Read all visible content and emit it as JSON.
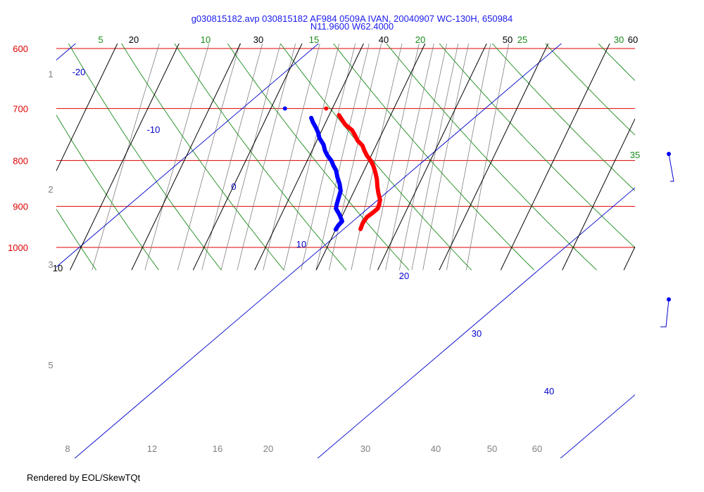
{
  "title_line1": "g030815182.avp 030815182 AF984 0509A IVAN, 20040907 WC-130H, 650984",
  "title_line2": "N11.9600 W62.4000",
  "footer": "Rendered by EOL/SkewTQt",
  "chart_data": {
    "type": "line",
    "title": "g030815182.avp 030815182 AF984 0509A IVAN, 20040907 WC-130H, 650984 N11.9600 W62.4000",
    "xlabel": "",
    "ylabel": "",
    "pressure_range": [
      600,
      1040
    ],
    "pressure_ticks": [
      "600",
      "700",
      "800",
      "900",
      "1000"
    ],
    "isotherms_bottom": [
      "20",
      "30",
      "40",
      "50",
      "60"
    ],
    "isotherms_top": [
      "20",
      "30",
      "40",
      "50",
      "60"
    ],
    "isotherms_left": [
      "10"
    ],
    "mixing_ratio_bottom": [
      "8",
      "12",
      "16",
      "20",
      "30",
      "40",
      "50",
      "60"
    ],
    "mixing_ratio_left": [
      "1",
      "2",
      "3",
      "5"
    ],
    "dry_adiabat_labels": [
      "5",
      "10",
      "15",
      "20",
      "25",
      "30",
      "35"
    ],
    "moist_adiabat_labels": [
      "-20",
      "-10",
      "0",
      "10",
      "20",
      "30",
      "40"
    ],
    "colors": {
      "isobar": "#dd0000",
      "isotherm": "#000000",
      "dry_adiabat": "#1a8a1a",
      "moist_adiabat": "#0000cc",
      "mixing_ratio": "#808080",
      "temperature": "#ff0000",
      "dewpoint": "#0000ff"
    },
    "series": [],
    "temperature_profile": [
      {
        "p": 954,
        "t": 24.0
      },
      {
        "p": 940,
        "t": 23.9
      },
      {
        "p": 925,
        "t": 24.1
      },
      {
        "p": 915,
        "t": 24.7
      },
      {
        "p": 905,
        "t": 25.2
      },
      {
        "p": 895,
        "t": 25.1
      },
      {
        "p": 885,
        "t": 24.9
      },
      {
        "p": 870,
        "t": 24.1
      },
      {
        "p": 855,
        "t": 23.4
      },
      {
        "p": 840,
        "t": 22.8
      },
      {
        "p": 825,
        "t": 22.0
      },
      {
        "p": 812,
        "t": 21.2
      },
      {
        "p": 800,
        "t": 20.3
      },
      {
        "p": 790,
        "t": 19.3
      },
      {
        "p": 780,
        "t": 18.5
      },
      {
        "p": 770,
        "t": 17.8
      },
      {
        "p": 760,
        "t": 16.6
      },
      {
        "p": 750,
        "t": 15.8
      },
      {
        "p": 740,
        "t": 14.9
      },
      {
        "p": 730,
        "t": 13.4
      },
      {
        "p": 720,
        "t": 12.4
      },
      {
        "p": 712,
        "t": 11.6
      }
    ],
    "dewpoint_profile": [
      {
        "p": 955,
        "t": 20.0
      },
      {
        "p": 945,
        "t": 20.1
      },
      {
        "p": 935,
        "t": 20.4
      },
      {
        "p": 920,
        "t": 19.5
      },
      {
        "p": 905,
        "t": 18.4
      },
      {
        "p": 895,
        "t": 18.2
      },
      {
        "p": 880,
        "t": 18.0
      },
      {
        "p": 865,
        "t": 17.8
      },
      {
        "p": 850,
        "t": 17.1
      },
      {
        "p": 835,
        "t": 16.2
      },
      {
        "p": 820,
        "t": 15.4
      },
      {
        "p": 810,
        "t": 14.6
      },
      {
        "p": 800,
        "t": 13.9
      },
      {
        "p": 790,
        "t": 12.9
      },
      {
        "p": 780,
        "t": 12.1
      },
      {
        "p": 768,
        "t": 11.4
      },
      {
        "p": 755,
        "t": 10.2
      },
      {
        "p": 745,
        "t": 9.6
      },
      {
        "p": 735,
        "t": 8.8
      },
      {
        "p": 725,
        "t": 7.9
      },
      {
        "p": 717,
        "t": 7.3
      }
    ],
    "isolated_points": [
      {
        "series": "dewpoint",
        "p": 700,
        "t": 2.3
      },
      {
        "series": "temperature",
        "p": 700,
        "t": 9.0
      }
    ]
  }
}
